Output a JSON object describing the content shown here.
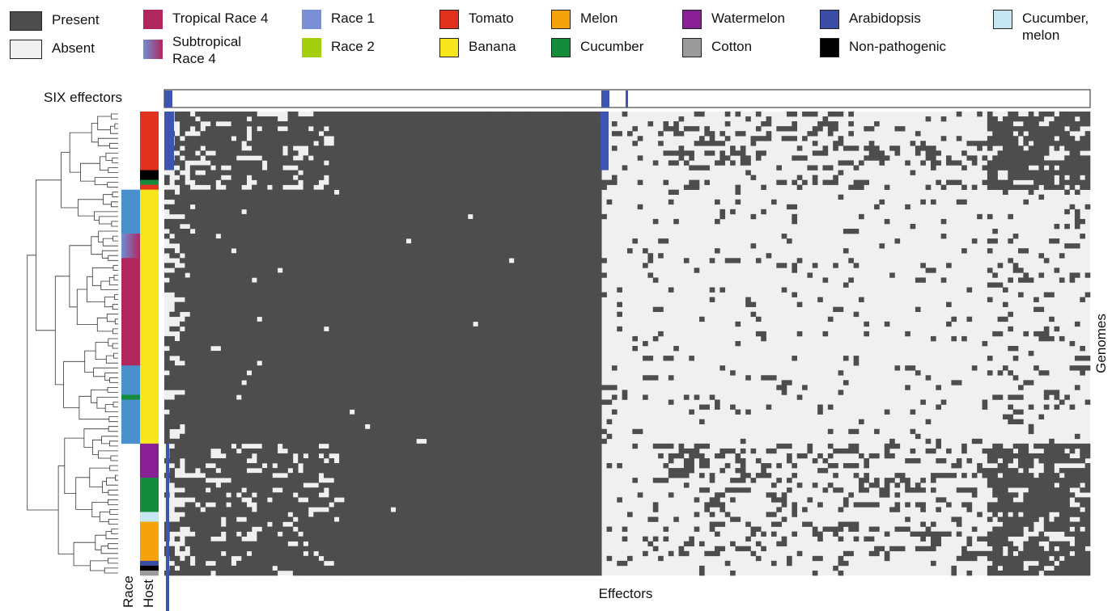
{
  "legend": {
    "presence": [
      {
        "label": "Present",
        "color": "#4d4d4d"
      },
      {
        "label": "Absent",
        "color": "#f0f0f0"
      }
    ],
    "race": [
      {
        "label": "Tropical Race 4",
        "color": "#b0275e"
      },
      {
        "label": "Subtropical\nRace 4",
        "color": "gradient"
      },
      {
        "label": "Race 1",
        "color": "#7b8fd6"
      },
      {
        "label": "Race 2",
        "color": "#a3cf0c"
      }
    ],
    "host": [
      {
        "label": "Tomato",
        "color": "#e0321e"
      },
      {
        "label": "Banana",
        "color": "#f7e61e"
      },
      {
        "label": "Melon",
        "color": "#f6a20a"
      },
      {
        "label": "Cucumber",
        "color": "#148c3c"
      },
      {
        "label": "Watermelon",
        "color": "#8a2096"
      },
      {
        "label": "Cotton",
        "color": "#9a9a9a"
      },
      {
        "label": "Arabidopsis",
        "color": "#3b4ea6"
      },
      {
        "label": "Non-pathogenic",
        "color": "#000000"
      },
      {
        "label": "Cucumber,\nmelon",
        "color": "#c6e6f2"
      }
    ]
  },
  "colors": {
    "present": "#4d4d4d",
    "absent": "#f0f0f0",
    "six": "#3d55b0",
    "race_blue": "#4a90cf"
  },
  "chart_data": {
    "type": "heatmap",
    "xlabel": "Effectors",
    "ylabel": "Genomes",
    "top_track_label": "SIX effectors",
    "side_track_labels": [
      "Race",
      "Host"
    ],
    "values": [
      "Present",
      "Absent"
    ],
    "host_blocks": [
      {
        "host": "Tomato",
        "rows": 12
      },
      {
        "host": "Non-pathogenic",
        "rows": 2
      },
      {
        "host": "Cucumber",
        "rows": 1
      },
      {
        "host": "Tomato",
        "rows": 1
      },
      {
        "host": "Banana",
        "rows": 52
      },
      {
        "host": "Watermelon",
        "rows": 7
      },
      {
        "host": "Cucumber",
        "rows": 7
      },
      {
        "host": "Cucumber, melon",
        "rows": 2
      },
      {
        "host": "Melon",
        "rows": 8
      },
      {
        "host": "Arabidopsis",
        "rows": 1
      },
      {
        "host": "Non-pathogenic",
        "rows": 1
      },
      {
        "host": "Cotton",
        "rows": 1
      }
    ],
    "race_blocks": [
      {
        "race": "none",
        "rows": 16
      },
      {
        "race": "Race 1",
        "rows": 9
      },
      {
        "race": "Subtropical Race 4",
        "rows": 5
      },
      {
        "race": "Tropical Race 4",
        "rows": 22
      },
      {
        "race": "Race 1",
        "rows": 6
      },
      {
        "race": "Race 2",
        "rows": 1
      },
      {
        "race": "Race 1",
        "rows": 9
      },
      {
        "race": "none",
        "rows": 27
      }
    ]
  }
}
